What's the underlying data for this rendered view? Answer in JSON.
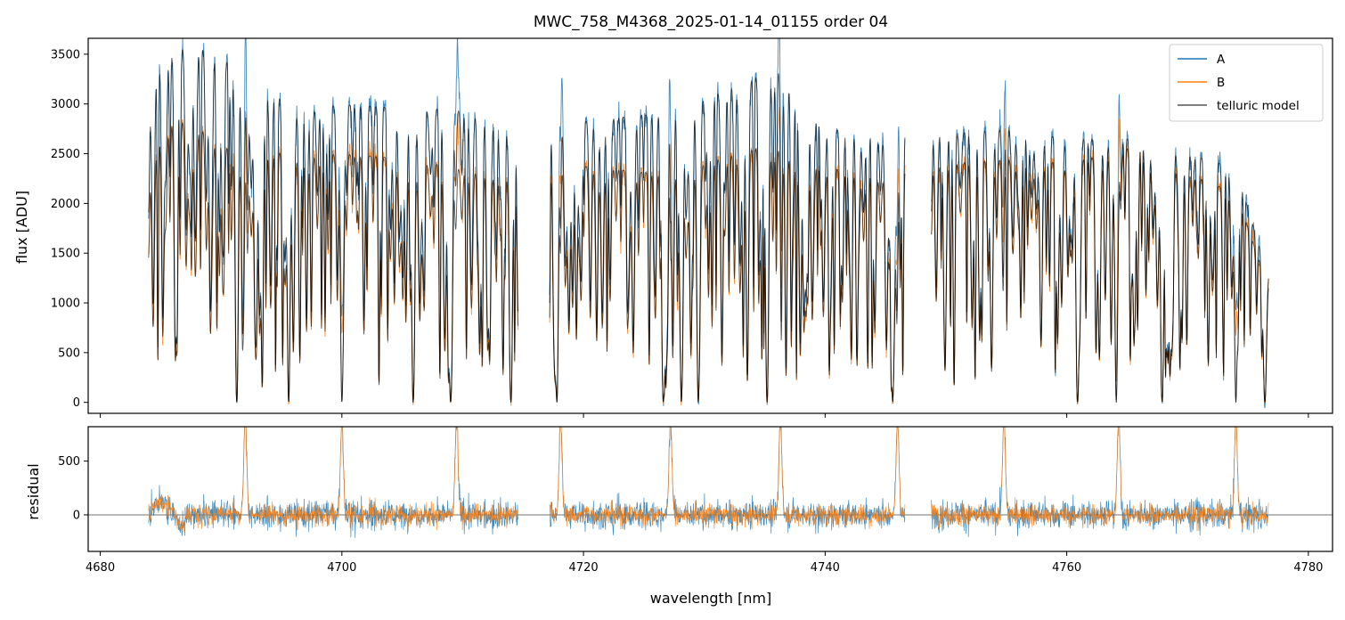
{
  "chart_data": {
    "type": "line",
    "title": "MWC_758_M4368_2025-01-14_01155  order 04",
    "xlabel": "wavelength [nm]",
    "xlim": [
      4679,
      4782
    ],
    "x_ticks": [
      "4680",
      "4700",
      "4720",
      "4740",
      "4760",
      "4780"
    ],
    "panels": [
      {
        "name": "flux",
        "ylabel": "flux [ADU]",
        "ylim": [
          -110,
          3660
        ],
        "y_ticks": [
          "0",
          "500",
          "1000",
          "1500",
          "2000",
          "2500",
          "3000",
          "3500"
        ],
        "legend_position": "top-right",
        "segments": [
          [
            4684.0,
            4714.6
          ],
          [
            4717.2,
            4746.6
          ],
          [
            4748.8,
            4776.7
          ]
        ],
        "series": [
          {
            "name": "A",
            "color": "#1f77b4",
            "envelope": [
              [
                4684.2,
                3350
              ],
              [
                4686,
                3550
              ],
              [
                4688,
                3600
              ],
              [
                4690,
                3450
              ],
              [
                4693,
                3300
              ],
              [
                4696,
                2900
              ],
              [
                4700,
                3000
              ],
              [
                4705,
                2950
              ],
              [
                4710,
                2950
              ],
              [
                4714,
                2700
              ],
              [
                4718,
                2800
              ],
              [
                4722,
                2850
              ],
              [
                4726,
                2900
              ],
              [
                4730,
                3050
              ],
              [
                4734,
                3250
              ],
              [
                4736,
                3350
              ],
              [
                4740,
                2750
              ],
              [
                4745,
                2700
              ],
              [
                4750,
                2700
              ],
              [
                4755,
                2750
              ],
              [
                4760,
                2650
              ],
              [
                4765,
                2650
              ],
              [
                4770,
                2500
              ],
              [
                4774,
                2350
              ],
              [
                4776.6,
                1300
              ]
            ]
          },
          {
            "name": "B",
            "color": "#ff7f0e",
            "envelope": [
              [
                4684.2,
                2550
              ],
              [
                4686,
                2850
              ],
              [
                4688,
                2800
              ],
              [
                4690,
                2550
              ],
              [
                4693,
                2600
              ],
              [
                4696,
                2450
              ],
              [
                4700,
                2500
              ],
              [
                4705,
                2450
              ],
              [
                4710,
                2350
              ],
              [
                4714,
                2250
              ],
              [
                4718,
                2400
              ],
              [
                4722,
                2350
              ],
              [
                4726,
                2300
              ],
              [
                4730,
                2400
              ],
              [
                4734,
                2550
              ],
              [
                4736,
                2550
              ],
              [
                4740,
                2350
              ],
              [
                4745,
                2300
              ],
              [
                4750,
                2400
              ],
              [
                4755,
                2450
              ],
              [
                4760,
                2400
              ],
              [
                4765,
                2550
              ],
              [
                4770,
                2300
              ],
              [
                4774,
                2100
              ],
              [
                4776.6,
                1200
              ]
            ]
          },
          {
            "name": "telluric model",
            "color": "#555555"
          }
        ],
        "absorption_lines_nm": [
          4691.3,
          4695.6,
          4700.0,
          4705.9,
          4709.0,
          4714.0,
          4717.8,
          4726.6,
          4728.1,
          4729.5,
          4735.2,
          4745.6,
          4760.9,
          4764.1,
          4767.9,
          4774.0,
          4776.4
        ],
        "emission_peaks_nm": [
          4692.0,
          4700.0,
          4709.5,
          4718.1,
          4727.2,
          4736.3,
          4746.0,
          4754.8,
          4764.3,
          4774.0
        ]
      },
      {
        "name": "residual",
        "ylabel": "residual",
        "ylim": [
          -340,
          820
        ],
        "y_ticks": [
          "0",
          "500"
        ],
        "zero_line": true,
        "spike_positions_nm": [
          4692.0,
          4700.4,
          4709.2,
          4718.0,
          4727.2,
          4736.3,
          4746.0,
          4754.8,
          4764.3,
          4774.0
        ]
      }
    ]
  }
}
